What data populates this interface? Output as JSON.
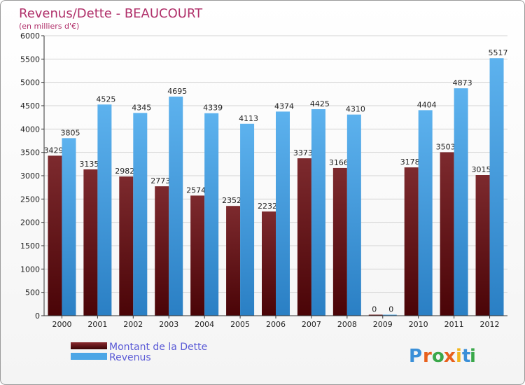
{
  "chart_data": {
    "type": "bar",
    "title": "Revenus/Dette - BEAUCOURT",
    "subtitle": "(en milliers d'€)",
    "categories": [
      "2000",
      "2001",
      "2002",
      "2003",
      "2004",
      "2005",
      "2006",
      "2007",
      "2008",
      "2009",
      "2010",
      "2011",
      "2012"
    ],
    "series": [
      {
        "name": "Montant de la Dette",
        "values": [
          3429,
          3135,
          2982,
          2773,
          2574,
          2352,
          2232,
          3373,
          3166,
          0,
          3178,
          3503,
          3015
        ],
        "color": "#6e0f12"
      },
      {
        "name": "Revenus",
        "values": [
          3805,
          4525,
          4345,
          4695,
          4339,
          4113,
          4374,
          4425,
          4310,
          0,
          4404,
          4873,
          5517
        ],
        "color": "#4ca6e6"
      }
    ],
    "ylim": [
      0,
      6000
    ],
    "yticks": [
      0,
      500,
      1000,
      1500,
      2000,
      2500,
      3000,
      3500,
      4000,
      4500,
      5000,
      5500,
      6000
    ],
    "grid": true,
    "legend": "bottom-left",
    "xlabel": "",
    "ylabel": ""
  },
  "legend": {
    "debt": "Montant de la Dette",
    "revenue": "Revenus"
  },
  "brand": {
    "letters": [
      "P",
      "r",
      "o",
      "x",
      "i",
      "t",
      "i"
    ],
    "colors": [
      "#3a8fd8",
      "#e8601c",
      "#3aa84a",
      "#e8601c",
      "#f2b51c",
      "#3a8fd8",
      "#3aa84a"
    ]
  }
}
